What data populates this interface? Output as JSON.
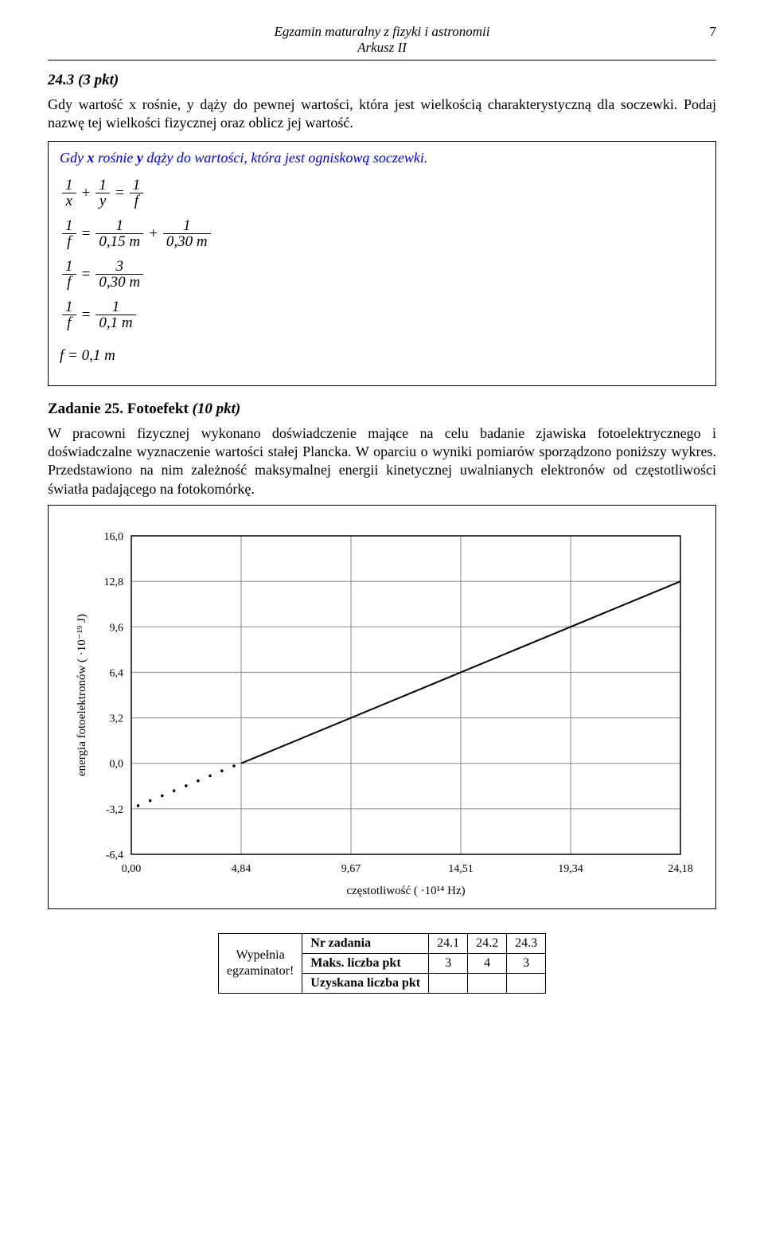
{
  "header": {
    "title_line1": "Egzamin maturalny z fizyki i astronomii",
    "title_line2": "Arkusz II",
    "page_number": "7"
  },
  "q24": {
    "title": "24.3 (3 pkt)",
    "prompt": "Gdy wartość x rośnie, y dąży do pewnej wartości, która jest wielkością charakterystyczną dla soczewki. Podaj nazwę tej wielkości fizycznej oraz oblicz jej wartość.",
    "answer": "Gdy x rośnie y dąży do wartości, która jest ogniskową soczewki.",
    "eq1": {
      "a_num": "1",
      "a_den": "x",
      "plus": "+",
      "b_num": "1",
      "b_den": "y",
      "eq": "=",
      "c_num": "1",
      "c_den": "f"
    },
    "eq2": {
      "a_num": "1",
      "a_den": "f",
      "eq": "=",
      "b_num": "1",
      "b_den": "0,15 m",
      "plus": "+",
      "c_num": "1",
      "c_den": "0,30 m"
    },
    "eq3": {
      "a_num": "1",
      "a_den": "f",
      "eq": "=",
      "b_num": "3",
      "b_den": "0,30 m"
    },
    "eq4": {
      "a_num": "1",
      "a_den": "f",
      "eq": "=",
      "b_num": "1",
      "b_den": "0,1 m"
    },
    "eq5": "f = 0,1 m"
  },
  "q25": {
    "title_bold": "Zadanie 25. Fotoefekt ",
    "title_ital": "(10 pkt)",
    "body": "W pracowni fizycznej wykonano doświadczenie mające na celu badanie zjawiska fotoelektrycznego i doświadczalne wyznaczenie wartości stałej Plancka. W oparciu o wyniki pomiarów sporządzono poniższy wykres. Przedstawiono na nim zależność maksymalnej energii kinetycznej uwalnianych elektronów od częstotliwości światła padającego na fotokomórkę."
  },
  "chart": {
    "type": "line",
    "ylabel": "energia fotoelektronów ( ·10⁻¹⁹ J)",
    "xlabel": "częstotliwość ( ·10¹⁴ Hz)",
    "x_ticks": [
      "0,00",
      "4,84",
      "9,67",
      "14,51",
      "19,34",
      "24,18"
    ],
    "y_ticks": [
      "-6,4",
      "-3,2",
      "0,0",
      "3,2",
      "6,4",
      "9,6",
      "12,8",
      "16,0"
    ],
    "xlim": [
      0,
      24.18
    ],
    "ylim": [
      -6.4,
      16.0
    ],
    "grid_color": "#888888",
    "axis_color": "#000000",
    "line_color": "#000000",
    "background": "#ffffff",
    "label_fontsize": 15,
    "tick_fontsize": 14,
    "solid_line": {
      "x1": 4.84,
      "y1": 0.0,
      "x2": 24.18,
      "y2": 12.8
    },
    "dotted_points": [
      {
        "x": 0.3,
        "y": -2.98
      },
      {
        "x": 0.83,
        "y": -2.63
      },
      {
        "x": 1.36,
        "y": -2.28
      },
      {
        "x": 1.88,
        "y": -1.93
      },
      {
        "x": 2.41,
        "y": -1.58
      },
      {
        "x": 2.94,
        "y": -1.23
      },
      {
        "x": 3.47,
        "y": -0.88
      },
      {
        "x": 3.99,
        "y": -0.53
      },
      {
        "x": 4.52,
        "y": -0.18
      }
    ]
  },
  "score_table": {
    "side_line1": "Wypełnia",
    "side_line2": "egzaminator!",
    "row1_label": "Nr zadania",
    "row1_vals": [
      "24.1",
      "24.2",
      "24.3"
    ],
    "row2_label": "Maks. liczba pkt",
    "row2_vals": [
      "3",
      "4",
      "3"
    ],
    "row3_label": "Uzyskana liczba pkt",
    "row3_vals": [
      "",
      "",
      ""
    ]
  }
}
